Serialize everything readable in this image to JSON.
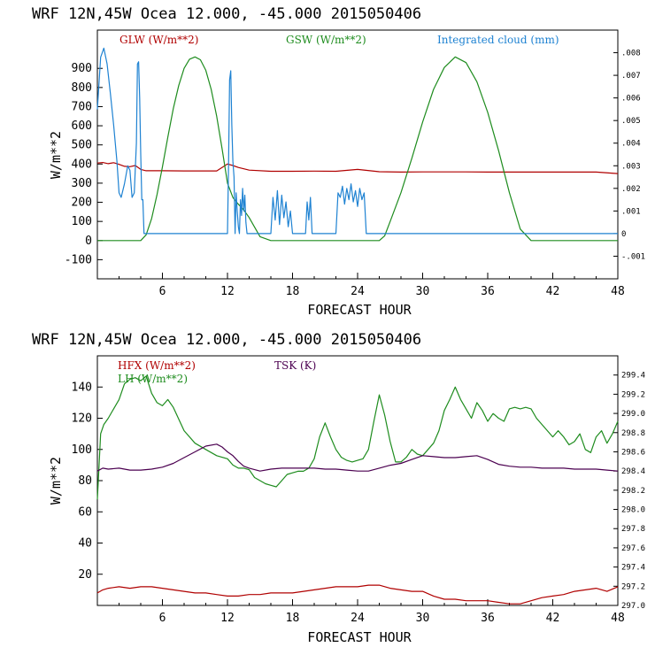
{
  "colors": {
    "red": "#b00000",
    "green": "#1e8c1e",
    "blue": "#1e82d2",
    "purple": "#4b0050",
    "axis": "#000000"
  },
  "chart_data": [
    {
      "type": "line",
      "title": "WRF   12N,45W Ocea  12.000, -45.000  2015050406",
      "xlabel": "FORECAST HOUR",
      "ylabel": "W/m**2",
      "xlim": [
        0,
        48
      ],
      "ylim": [
        -200,
        1100
      ],
      "xticks": [
        6,
        12,
        18,
        24,
        30,
        36,
        42,
        48
      ],
      "yticks": [
        -100,
        0,
        100,
        200,
        300,
        400,
        500,
        600,
        700,
        800,
        900
      ],
      "right_ylim": [
        -0.002,
        0.009
      ],
      "right_ticks": [
        "-.001",
        "0",
        ".001",
        ".002",
        ".003",
        ".004",
        ".005",
        ".006",
        ".007",
        ".008"
      ],
      "right_tick_values": [
        -0.001,
        0,
        0.001,
        0.002,
        0.003,
        0.004,
        0.005,
        0.006,
        0.007,
        0.008
      ],
      "series": [
        {
          "name": "GLW (W/m**2)",
          "color": "red",
          "axis": "left",
          "x": [
            0,
            0.5,
            1,
            1.5,
            2,
            2.5,
            3,
            3.5,
            4,
            4.5,
            5,
            6,
            8,
            10,
            11,
            12,
            12.5,
            13,
            13.5,
            14,
            16,
            18,
            20,
            22,
            24,
            26,
            28,
            30,
            32,
            34,
            36,
            38,
            40,
            42,
            44,
            46,
            48
          ],
          "y": [
            405,
            408,
            402,
            407,
            398,
            388,
            386,
            392,
            372,
            365,
            365,
            365,
            364,
            364,
            364,
            400,
            392,
            382,
            375,
            368,
            362,
            362,
            363,
            362,
            372,
            360,
            358,
            359,
            359,
            359,
            358,
            358,
            358,
            358,
            358,
            358,
            350
          ]
        },
        {
          "name": "GSW (W/m**2)",
          "color": "green",
          "axis": "left",
          "x": [
            0,
            1,
            2,
            3,
            3.5,
            4,
            4.5,
            5,
            5.5,
            6,
            6.5,
            7,
            7.5,
            8,
            8.5,
            9,
            9.5,
            10,
            10.5,
            11,
            11.5,
            12,
            12.5,
            13,
            13.5,
            14,
            14.5,
            15,
            16,
            26,
            26.5,
            27,
            28,
            29,
            30,
            31,
            32,
            33,
            34,
            35,
            36,
            37,
            38,
            39,
            40,
            48
          ],
          "y": [
            0,
            0,
            0,
            0,
            0,
            0,
            30,
            115,
            240,
            385,
            540,
            690,
            810,
            900,
            948,
            960,
            945,
            890,
            790,
            650,
            480,
            300,
            225,
            190,
            160,
            120,
            70,
            20,
            0,
            0,
            25,
            100,
            250,
            430,
            620,
            790,
            905,
            960,
            930,
            830,
            670,
            470,
            250,
            60,
            0,
            0
          ]
        },
        {
          "name": "Integrated cloud (mm)",
          "color": "blue",
          "axis": "right",
          "x": [
            0,
            0.3,
            0.6,
            0.9,
            1.2,
            1.5,
            1.8,
            2.0,
            2.2,
            2.5,
            2.8,
            3.0,
            3.2,
            3.4,
            3.6,
            3.7,
            3.8,
            3.9,
            4.0,
            4.1,
            4.2,
            4.3,
            12.0,
            12.1,
            12.2,
            12.3,
            12.4,
            12.5,
            12.6,
            12.7,
            12.8,
            12.9,
            13.0,
            13.1,
            13.2,
            13.3,
            13.4,
            13.5,
            13.6,
            13.7,
            13.8,
            16.0,
            16.2,
            16.4,
            16.6,
            16.8,
            17.0,
            17.2,
            17.4,
            17.6,
            17.8,
            18.0,
            18.2,
            18.4,
            18.5,
            19.2,
            19.35,
            19.5,
            19.65,
            19.8,
            22.0,
            22.2,
            22.4,
            22.6,
            22.8,
            23.0,
            23.2,
            23.4,
            23.6,
            23.8,
            24.0,
            24.2,
            24.4,
            24.6,
            24.8,
            48
          ],
          "y": [
            0.0055,
            0.0078,
            0.0082,
            0.0075,
            0.0062,
            0.0048,
            0.0032,
            0.0018,
            0.0016,
            0.0022,
            0.003,
            0.0028,
            0.0016,
            0.0018,
            0.004,
            0.0075,
            0.0076,
            0.006,
            0.0035,
            0.0015,
            0.0015,
            0,
            0,
            0.003,
            0.0068,
            0.0072,
            0.0048,
            0.0032,
            0.0025,
            0,
            0.0018,
            0.001,
            0.0003,
            0,
            0.0015,
            0.0008,
            0.002,
            0.001,
            0.0017,
            0.0005,
            0,
            0,
            0.0016,
            0.0006,
            0.0019,
            0.0004,
            0.0017,
            0.0007,
            0.0014,
            0.0003,
            0.001,
            0,
            0,
            0,
            0,
            0,
            0.0014,
            0.0006,
            0.0016,
            0,
            0,
            0.0018,
            0.0016,
            0.0021,
            0.0013,
            0.002,
            0.0015,
            0.0022,
            0.0014,
            0.0019,
            0.0012,
            0.002,
            0.0015,
            0.0018,
            0,
            0
          ]
        }
      ]
    },
    {
      "type": "line",
      "title": "WRF   12N,45W Ocea  12.000, -45.000  2015050406",
      "xlabel": "FORECAST HOUR",
      "ylabel": "W/m**2",
      "xlim": [
        0,
        48
      ],
      "ylim": [
        0,
        160
      ],
      "xticks": [
        6,
        12,
        18,
        24,
        30,
        36,
        42,
        48
      ],
      "yticks": [
        20,
        40,
        60,
        80,
        100,
        120,
        140
      ],
      "right_ylim": [
        297.0,
        299.6
      ],
      "right_ticks": [
        "297.0",
        "297.2",
        "297.4",
        "297.6",
        "297.8",
        "298.0",
        "298.2",
        "298.4",
        "298.6",
        "298.8",
        "299.0",
        "299.2",
        "299.4"
      ],
      "right_tick_values": [
        297.0,
        297.2,
        297.4,
        297.6,
        297.8,
        298.0,
        298.2,
        298.4,
        298.6,
        298.8,
        299.0,
        299.2,
        299.4
      ],
      "series": [
        {
          "name": "HFX (W/m**2)",
          "color": "red",
          "axis": "left",
          "x": [
            0,
            0.5,
            1,
            2,
            3,
            4,
            5,
            6,
            7,
            8,
            9,
            10,
            11,
            12,
            13,
            14,
            15,
            16,
            17,
            18,
            19,
            20,
            21,
            22,
            23,
            24,
            25,
            26,
            27,
            28,
            29,
            30,
            31,
            32,
            33,
            34,
            35,
            36,
            37,
            38,
            39,
            40,
            41,
            42,
            43,
            44,
            45,
            46,
            47,
            48
          ],
          "y": [
            8,
            10,
            11,
            12,
            11,
            12,
            12,
            11,
            10,
            9,
            8,
            8,
            7,
            6,
            6,
            7,
            7,
            8,
            8,
            8,
            9,
            10,
            11,
            12,
            12,
            12,
            13,
            13,
            11,
            10,
            9,
            9,
            6,
            4,
            4,
            3,
            3,
            3,
            2,
            1,
            1,
            3,
            5,
            6,
            7,
            9,
            10,
            11,
            9,
            12
          ]
        },
        {
          "name": "LH (W/m**2)",
          "color": "green",
          "axis": "left",
          "x": [
            0,
            0.3,
            0.6,
            1,
            1.5,
            2,
            2.5,
            3,
            3.5,
            4,
            4.5,
            5,
            5.5,
            6,
            6.5,
            7,
            8,
            9,
            10,
            11,
            12,
            12.5,
            13,
            13.5,
            14,
            14.5,
            15,
            15.5,
            16,
            16.5,
            17,
            17.5,
            18,
            18.5,
            19,
            19.5,
            20,
            20.5,
            21,
            21.5,
            22,
            22.5,
            23,
            23.5,
            24,
            24.5,
            25,
            25.5,
            26,
            26.5,
            27,
            27.5,
            28,
            28.5,
            29,
            29.5,
            30,
            30.5,
            31,
            31.5,
            32,
            32.5,
            33,
            33.5,
            34,
            34.5,
            35,
            35.5,
            36,
            36.5,
            37,
            37.5,
            38,
            38.5,
            39,
            39.5,
            40,
            40.5,
            41,
            41.5,
            42,
            42.5,
            43,
            43.5,
            44,
            44.5,
            45,
            45.5,
            46,
            46.5,
            47,
            47.5,
            48
          ],
          "y": [
            68,
            110,
            116,
            120,
            126,
            132,
            142,
            145,
            146,
            144,
            147,
            136,
            130,
            128,
            132,
            127,
            112,
            104,
            100,
            96,
            94,
            90,
            88,
            88,
            87,
            82,
            80,
            78,
            77,
            76,
            80,
            84,
            85,
            86,
            86,
            88,
            94,
            108,
            117,
            108,
            100,
            95,
            93,
            92,
            93,
            94,
            100,
            118,
            135,
            122,
            105,
            92,
            92,
            95,
            100,
            97,
            96,
            100,
            104,
            112,
            125,
            132,
            140,
            132,
            126,
            120,
            130,
            125,
            118,
            123,
            120,
            118,
            126,
            127,
            126,
            127,
            126,
            120,
            116,
            112,
            108,
            112,
            108,
            103,
            105,
            110,
            100,
            98,
            108,
            112,
            104,
            110,
            118
          ]
        },
        {
          "name": "TSK (K)",
          "color": "purple",
          "axis": "right",
          "x": [
            0,
            0.5,
            1,
            2,
            3,
            4,
            5,
            6,
            7,
            8,
            9,
            10,
            11,
            11.5,
            12,
            12.5,
            13,
            13.5,
            14,
            15,
            16,
            17,
            18,
            19,
            20,
            21,
            22,
            23,
            24,
            25,
            26,
            27,
            28,
            29,
            30,
            31,
            32,
            33,
            34,
            35,
            36,
            37,
            38,
            39,
            40,
            41,
            42,
            43,
            44,
            45,
            46,
            47,
            48
          ],
          "y": [
            298.4,
            298.43,
            298.42,
            298.43,
            298.41,
            298.41,
            298.42,
            298.44,
            298.48,
            298.54,
            298.6,
            298.66,
            298.68,
            298.65,
            298.6,
            298.56,
            298.5,
            298.45,
            298.43,
            298.4,
            298.42,
            298.43,
            298.43,
            298.43,
            298.43,
            298.42,
            298.42,
            298.41,
            298.4,
            298.4,
            298.43,
            298.46,
            298.48,
            298.52,
            298.56,
            298.55,
            298.54,
            298.54,
            298.55,
            298.56,
            298.52,
            298.47,
            298.45,
            298.44,
            298.44,
            298.43,
            298.43,
            298.43,
            298.42,
            298.42,
            298.42,
            298.41,
            298.4
          ]
        }
      ]
    }
  ],
  "legends": [
    [
      {
        "text": "GLW (W/m**2)",
        "color": "red"
      },
      {
        "text": "GSW (W/m**2)",
        "color": "green"
      },
      {
        "text": "Integrated cloud (mm)",
        "color": "blue"
      }
    ],
    [
      {
        "text": "HFX (W/m**2)",
        "color": "red"
      },
      {
        "text": "TSK (K)",
        "color": "purple"
      },
      {
        "text": "LH  (W/m**2)",
        "color": "green"
      }
    ]
  ]
}
